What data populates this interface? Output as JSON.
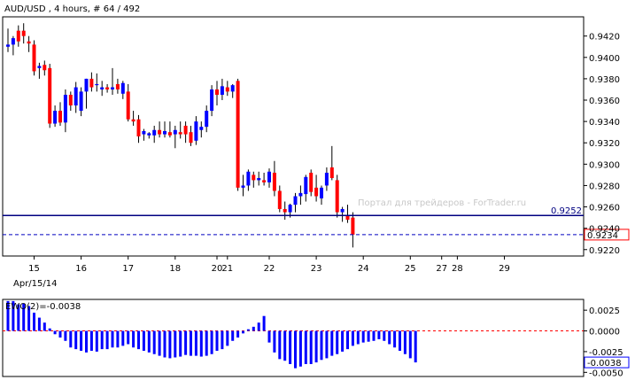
{
  "header": {
    "symbol_text": "AUD/USD , 4 hours, # 64 / 492"
  },
  "watermark": "Портал для трейдеров - ForTrader.ru",
  "colors": {
    "bull": "#0000ff",
    "bear": "#ff0000",
    "line": "#000080",
    "dash": "#0000c0",
    "zero": "#ff0000"
  },
  "chart_data": [
    {
      "type": "candlestick",
      "ylim": [
        0.9214,
        0.9438
      ],
      "y_ticks": [
        "0.9420",
        "0.9400",
        "0.9380",
        "0.9360",
        "0.9340",
        "0.9320",
        "0.9300",
        "0.9280",
        "0.9260",
        "0.9240",
        "0.9220"
      ],
      "y_tick_values": [
        0.942,
        0.94,
        0.938,
        0.936,
        0.934,
        0.932,
        0.93,
        0.928,
        0.926,
        0.924,
        0.922
      ],
      "x_labels": [
        {
          "text": "15",
          "slot": 5
        },
        {
          "text": "16",
          "slot": 14
        },
        {
          "text": "17",
          "slot": 23
        },
        {
          "text": "18",
          "slot": 32
        },
        {
          "text": "20",
          "slot": 40
        },
        {
          "text": "21",
          "slot": 42
        },
        {
          "text": "22",
          "slot": 50
        },
        {
          "text": "23",
          "slot": 59
        },
        {
          "text": "24",
          "slot": 68
        },
        {
          "text": "25",
          "slot": 77
        },
        {
          "text": "27",
          "slot": 83
        },
        {
          "text": "28",
          "slot": 86
        },
        {
          "text": "29",
          "slot": 95
        }
      ],
      "date_label": "Apr/15/14",
      "solid_line": {
        "value": 0.9252,
        "label": "0.9252"
      },
      "dashed_line": {
        "value": 0.9234,
        "label": "0.9234"
      },
      "ohlc": [
        [
          0.941,
          0.9427,
          0.9405,
          0.9412
        ],
        [
          0.9412,
          0.942,
          0.9402,
          0.9418
        ],
        [
          0.9425,
          0.943,
          0.941,
          0.9415
        ],
        [
          0.9425,
          0.9432,
          0.9413,
          0.942
        ],
        [
          0.9415,
          0.942,
          0.9405,
          0.9413
        ],
        [
          0.9412,
          0.9416,
          0.9383,
          0.9387
        ],
        [
          0.939,
          0.9395,
          0.938,
          0.9392
        ],
        [
          0.9393,
          0.9397,
          0.9383,
          0.9388
        ],
        [
          0.939,
          0.9394,
          0.9334,
          0.9338
        ],
        [
          0.9338,
          0.9355,
          0.9335,
          0.935
        ],
        [
          0.935,
          0.9358,
          0.9336,
          0.9339
        ],
        [
          0.9339,
          0.937,
          0.933,
          0.9365
        ],
        [
          0.9365,
          0.9368,
          0.935,
          0.9355
        ],
        [
          0.9355,
          0.9377,
          0.9348,
          0.9372
        ],
        [
          0.935,
          0.9372,
          0.9345,
          0.9368
        ],
        [
          0.9368,
          0.938,
          0.9352,
          0.938
        ],
        [
          0.938,
          0.9386,
          0.9368,
          0.9372
        ],
        [
          0.9374,
          0.9385,
          0.9368,
          0.9375
        ],
        [
          0.937,
          0.9378,
          0.9364,
          0.9372
        ],
        [
          0.9372,
          0.9375,
          0.9367,
          0.937
        ],
        [
          0.937,
          0.939,
          0.9365,
          0.9372
        ],
        [
          0.9375,
          0.938,
          0.9366,
          0.937
        ],
        [
          0.9366,
          0.9378,
          0.9361,
          0.9376
        ],
        [
          0.9368,
          0.9375,
          0.934,
          0.9342
        ],
        [
          0.9342,
          0.935,
          0.9336,
          0.934
        ],
        [
          0.9342,
          0.9346,
          0.932,
          0.9326
        ],
        [
          0.9328,
          0.9333,
          0.9322,
          0.9331
        ],
        [
          0.9327,
          0.933,
          0.9324,
          0.9329
        ],
        [
          0.9327,
          0.9336,
          0.932,
          0.9332
        ],
        [
          0.9332,
          0.934,
          0.9325,
          0.9328
        ],
        [
          0.9328,
          0.934,
          0.9325,
          0.9331
        ],
        [
          0.933,
          0.934,
          0.9325,
          0.9327
        ],
        [
          0.9328,
          0.9336,
          0.9315,
          0.9332
        ],
        [
          0.933,
          0.934,
          0.9324,
          0.9328
        ],
        [
          0.9336,
          0.934,
          0.932,
          0.9328
        ],
        [
          0.933,
          0.9336,
          0.9317,
          0.932
        ],
        [
          0.9322,
          0.9345,
          0.9318,
          0.934
        ],
        [
          0.9332,
          0.934,
          0.9325,
          0.9335
        ],
        [
          0.9335,
          0.9355,
          0.933,
          0.935
        ],
        [
          0.935,
          0.9374,
          0.9345,
          0.937
        ],
        [
          0.937,
          0.9378,
          0.9355,
          0.9365
        ],
        [
          0.9365,
          0.938,
          0.936,
          0.9373
        ],
        [
          0.9372,
          0.9378,
          0.9364,
          0.9368
        ],
        [
          0.9368,
          0.9375,
          0.9362,
          0.9374
        ],
        [
          0.9378,
          0.938,
          0.9275,
          0.9278
        ],
        [
          0.9278,
          0.929,
          0.927,
          0.928
        ],
        [
          0.928,
          0.9295,
          0.9275,
          0.9293
        ],
        [
          0.929,
          0.9293,
          0.9278,
          0.9285
        ],
        [
          0.9285,
          0.9293,
          0.928,
          0.9287
        ],
        [
          0.9285,
          0.9292,
          0.928,
          0.9283
        ],
        [
          0.9283,
          0.9296,
          0.9278,
          0.9293
        ],
        [
          0.9292,
          0.9303,
          0.927,
          0.9275
        ],
        [
          0.9275,
          0.928,
          0.9255,
          0.9258
        ],
        [
          0.9258,
          0.9265,
          0.9248,
          0.9255
        ],
        [
          0.9255,
          0.9263,
          0.925,
          0.9262
        ],
        [
          0.9262,
          0.9273,
          0.9255,
          0.927
        ],
        [
          0.927,
          0.928,
          0.9262,
          0.9273
        ],
        [
          0.9272,
          0.929,
          0.9265,
          0.9288
        ],
        [
          0.9292,
          0.9295,
          0.927,
          0.9274
        ],
        [
          0.9278,
          0.929,
          0.9265,
          0.927
        ],
        [
          0.9268,
          0.928,
          0.9262,
          0.9278
        ],
        [
          0.928,
          0.9297,
          0.9275,
          0.9292
        ],
        [
          0.9297,
          0.9317,
          0.9285,
          0.9287
        ],
        [
          0.9285,
          0.929,
          0.925,
          0.9255
        ],
        [
          0.9255,
          0.926,
          0.9246,
          0.9258
        ],
        [
          0.9252,
          0.9262,
          0.9245,
          0.9248
        ],
        [
          0.925,
          0.9255,
          0.9222,
          0.9234
        ]
      ]
    },
    {
      "type": "bar",
      "indicator_label": "EWO(2)=-0.0038",
      "ylim": [
        -0.0055,
        0.0038
      ],
      "y_ticks": [
        "0.0025",
        "0.0000",
        "-0.0025",
        "-0.0050"
      ],
      "y_tick_values": [
        0.0025,
        0.0,
        -0.0025,
        -0.005
      ],
      "current": {
        "value": -0.0038,
        "label": "-0.0038"
      },
      "values": [
        0.0036,
        0.0036,
        0.0032,
        0.0033,
        0.003,
        0.0022,
        0.0016,
        0.001,
        0.0003,
        -0.0004,
        -0.0008,
        -0.0012,
        -0.002,
        -0.0022,
        -0.0024,
        -0.0026,
        -0.0024,
        -0.0025,
        -0.0022,
        -0.0022,
        -0.002,
        -0.002,
        -0.0018,
        -0.0016,
        -0.002,
        -0.0022,
        -0.0024,
        -0.0026,
        -0.0028,
        -0.003,
        -0.0032,
        -0.0033,
        -0.0032,
        -0.0031,
        -0.0029,
        -0.003,
        -0.003,
        -0.0031,
        -0.003,
        -0.0028,
        -0.0024,
        -0.0022,
        -0.0018,
        -0.0012,
        -0.0008,
        -0.0003,
        0.0002,
        0.0005,
        0.001,
        0.0018,
        -0.0014,
        -0.0026,
        -0.0034,
        -0.0036,
        -0.004,
        -0.0045,
        -0.0043,
        -0.004,
        -0.004,
        -0.0038,
        -0.0035,
        -0.0033,
        -0.003,
        -0.0028,
        -0.0025,
        -0.0022,
        -0.0018,
        -0.0016,
        -0.0014,
        -0.0013,
        -0.0012,
        -0.001,
        -0.0012,
        -0.0016,
        -0.002,
        -0.0024,
        -0.0028,
        -0.0033,
        -0.0038
      ],
      "start_slot": 0
    }
  ]
}
